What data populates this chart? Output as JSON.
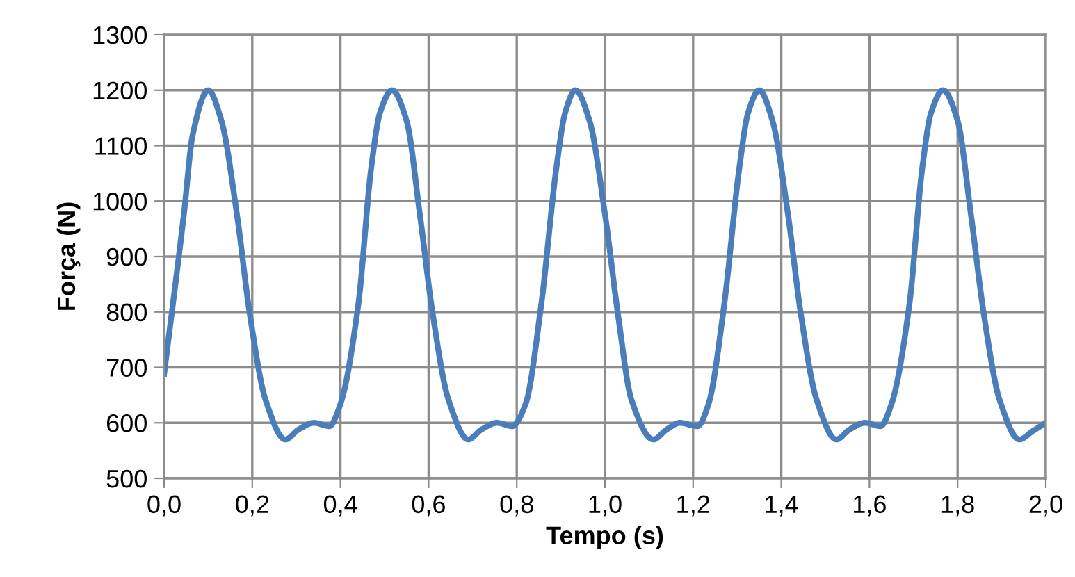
{
  "chart_data": {
    "type": "line",
    "xlabel": "Tempo (s)",
    "ylabel": "Força (N)",
    "series": [
      {
        "color": "#4a7ebb",
        "x": [
          0,
          0.045,
          0.065,
          0.1,
          0.13,
          0.165,
          0.195,
          0.23,
          0.275,
          0.305,
          0.34,
          0.375,
          0.4,
          0.44,
          0.47,
          0.49,
          0.517,
          0.55,
          0.58,
          0.61,
          0.645,
          0.69,
          0.72,
          0.755,
          0.79,
          0.82,
          0.855,
          0.89,
          0.91,
          0.933,
          0.965,
          1.0,
          1.03,
          1.06,
          1.11,
          1.14,
          1.17,
          1.21,
          1.235,
          1.27,
          1.305,
          1.325,
          1.35,
          1.38,
          1.415,
          1.445,
          1.48,
          1.525,
          1.555,
          1.59,
          1.625,
          1.65,
          1.69,
          1.72,
          1.74,
          1.767,
          1.8,
          1.83,
          1.86,
          1.895,
          1.94,
          1.97,
          2.0
        ],
        "values": [
          688,
          977,
          1120,
          1200,
          1145,
          977,
          793,
          642,
          570,
          588,
          600,
          594,
          634,
          810,
          1061,
          1160,
          1200,
          1145,
          977,
          793,
          642,
          570,
          588,
          600,
          594,
          634,
          810,
          1061,
          1160,
          1200,
          1145,
          977,
          793,
          642,
          570,
          588,
          600,
          594,
          634,
          810,
          1061,
          1160,
          1200,
          1145,
          977,
          793,
          642,
          570,
          588,
          600,
          594,
          634,
          810,
          1061,
          1160,
          1200,
          1145,
          977,
          793,
          642,
          570,
          585,
          600
        ]
      }
    ],
    "xlim": [
      0,
      2.0
    ],
    "ylim": [
      500,
      1300
    ],
    "xticks": [
      {
        "value": 0,
        "label": "0,0"
      },
      {
        "value": 0.2,
        "label": "0,2"
      },
      {
        "value": 0.4,
        "label": "0,4"
      },
      {
        "value": 0.6,
        "label": "0,6"
      },
      {
        "value": 0.8,
        "label": "0,8"
      },
      {
        "value": 1.0,
        "label": "1,0"
      },
      {
        "value": 1.2,
        "label": "1,2"
      },
      {
        "value": 1.4,
        "label": "1,4"
      },
      {
        "value": 1.6,
        "label": "1,6"
      },
      {
        "value": 1.8,
        "label": "1,8"
      },
      {
        "value": 2.0,
        "label": "2,0"
      }
    ],
    "yticks": [
      500,
      600,
      700,
      800,
      900,
      1000,
      1100,
      1200,
      1300
    ],
    "grid": true,
    "marker": "none",
    "line_style": "solid",
    "legend": false
  }
}
